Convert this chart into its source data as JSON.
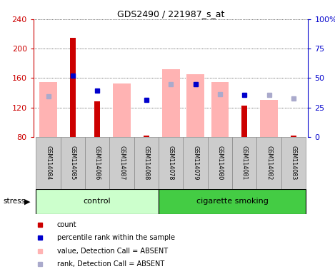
{
  "title": "GDS2490 / 221987_s_at",
  "samples": [
    "GSM114084",
    "GSM114085",
    "GSM114086",
    "GSM114087",
    "GSM114088",
    "GSM114078",
    "GSM114079",
    "GSM114080",
    "GSM114081",
    "GSM114082",
    "GSM114083"
  ],
  "count_values": [
    null,
    215,
    128,
    null,
    82,
    null,
    null,
    null,
    123,
    null,
    82
  ],
  "percentile_rank": [
    null,
    163,
    143,
    null,
    130,
    null,
    152,
    null,
    137,
    null,
    null
  ],
  "absent_value": [
    155,
    null,
    null,
    153,
    null,
    172,
    165,
    155,
    null,
    130,
    null
  ],
  "absent_rank": [
    135,
    null,
    null,
    null,
    null,
    152,
    152,
    138,
    null,
    137,
    132
  ],
  "ylim_left": [
    80,
    240
  ],
  "ylim_right": [
    0,
    100
  ],
  "yticks_left": [
    80,
    120,
    160,
    200,
    240
  ],
  "yticks_right": [
    0,
    25,
    50,
    75,
    100
  ],
  "yticklabels_right": [
    "0",
    "25",
    "50",
    "75",
    "100%"
  ],
  "color_count": "#cc0000",
  "color_percentile": "#0000cc",
  "color_absent_value": "#ffb3b3",
  "color_absent_rank": "#aaaacc",
  "color_control_bg": "#ccffcc",
  "color_smoking_bg": "#44cc44",
  "group_label_control": "control",
  "group_label_smoking": "cigarette smoking",
  "legend_items": [
    "count",
    "percentile rank within the sample",
    "value, Detection Call = ABSENT",
    "rank, Detection Call = ABSENT"
  ],
  "n_control": 5,
  "n_smoking": 6
}
